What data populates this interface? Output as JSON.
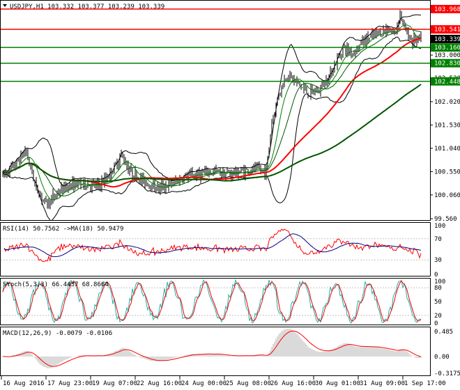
{
  "colors": {
    "bg": "#ffffff",
    "border": "#000000",
    "grid": "#c0c0c0",
    "candle": "#000000",
    "red_line": "#ff0000",
    "green_line": "#008000",
    "dark_green_line": "#005500",
    "bollinger": "#000000",
    "rsi_line": "#ff0000",
    "rsi_ma": "#000080",
    "stoch_main": "#20b2aa",
    "stoch_signal": "#ff0000",
    "macd_hist": "#c0c0c0",
    "macd_signal": "#ff0000"
  },
  "main_panel": {
    "header": "USDJPY,H1  103.332 103.377 103.239 103.339",
    "dropdown_icon": "triangle-down-icon",
    "y_ticks": [
      "103.000",
      "102.520",
      "102.020",
      "101.530",
      "101.040",
      "100.550",
      "100.060",
      "99.560"
    ],
    "levels": [
      {
        "label": "103.968",
        "color": "#ff0000",
        "kind": "resistance",
        "value": 103.968
      },
      {
        "label": "103.541",
        "color": "#ff0000",
        "kind": "resistance",
        "value": 103.541
      },
      {
        "label": "103.339",
        "color": "#000000",
        "kind": "price",
        "value": 103.339
      },
      {
        "label": "103.160",
        "color": "#008000",
        "kind": "support",
        "value": 103.16
      },
      {
        "label": "102.830",
        "color": "#008000",
        "kind": "support",
        "value": 102.83
      },
      {
        "label": "102.448",
        "color": "#008000",
        "kind": "support",
        "value": 102.448
      }
    ],
    "y_range": [
      99.56,
      104.1
    ]
  },
  "rsi_panel": {
    "header": "RSI(14) 50.7562  ->MA(18) 50.9479",
    "y_ticks": [
      "100",
      "70",
      "30",
      "0"
    ]
  },
  "stoch_panel": {
    "header": "Stoch(5,3,3) 66.4437 68.8664",
    "y_ticks": [
      "100",
      "80",
      "50",
      "20",
      "0"
    ]
  },
  "macd_panel": {
    "header": "MACD(12,26,9) -0.0079 -0.0106",
    "y_ticks": [
      "0.485",
      "0.00",
      "-0.3175"
    ]
  },
  "x_axis": {
    "labels": [
      "16 Aug 2016",
      "17 Aug 23:00",
      "19 Aug 07:00",
      "22 Aug 16:00",
      "24 Aug 00:00",
      "25 Aug 08:00",
      "26 Aug 16:00",
      "30 Aug 01:00",
      "31 Aug 09:00",
      "1 Sep 17:00"
    ]
  },
  "chart_data": {
    "type": "candlestick",
    "symbol": "USDJPY",
    "timeframe": "H1",
    "ohlc_last": {
      "open": 103.332,
      "high": 103.377,
      "low": 103.239,
      "close": 103.339
    },
    "price_range": [
      99.56,
      104.1
    ],
    "anchors": [
      [
        0,
        100.45
      ],
      [
        20,
        100.7
      ],
      [
        35,
        101.0
      ],
      [
        50,
        100.2
      ],
      [
        65,
        99.85
      ],
      [
        80,
        100.1
      ],
      [
        95,
        100.25
      ],
      [
        115,
        100.3
      ],
      [
        140,
        100.25
      ],
      [
        160,
        100.6
      ],
      [
        172,
        100.9
      ],
      [
        185,
        100.55
      ],
      [
        205,
        100.35
      ],
      [
        225,
        100.2
      ],
      [
        245,
        100.3
      ],
      [
        265,
        100.45
      ],
      [
        285,
        100.5
      ],
      [
        305,
        100.55
      ],
      [
        325,
        100.5
      ],
      [
        345,
        100.55
      ],
      [
        365,
        100.6
      ],
      [
        380,
        100.55
      ],
      [
        388,
        101.6
      ],
      [
        398,
        102.2
      ],
      [
        410,
        102.6
      ],
      [
        422,
        102.45
      ],
      [
        440,
        102.2
      ],
      [
        455,
        102.25
      ],
      [
        470,
        102.55
      ],
      [
        480,
        102.85
      ],
      [
        490,
        103.15
      ],
      [
        505,
        103.05
      ],
      [
        520,
        103.3
      ],
      [
        540,
        103.45
      ],
      [
        555,
        103.55
      ],
      [
        565,
        103.45
      ],
      [
        572,
        103.9
      ],
      [
        578,
        103.55
      ],
      [
        590,
        103.3
      ],
      [
        605,
        103.34
      ]
    ],
    "rsi": {
      "value": 50.7562,
      "ma": 50.9479,
      "period": 14,
      "ma_period": 18
    },
    "stoch": {
      "k": 66.4437,
      "d": 68.8664,
      "params": [
        5,
        3,
        3
      ]
    },
    "macd": {
      "main": -0.0079,
      "signal": -0.0106,
      "params": [
        12,
        26,
        9
      ],
      "range": [
        -0.3175,
        0.485
      ]
    }
  }
}
